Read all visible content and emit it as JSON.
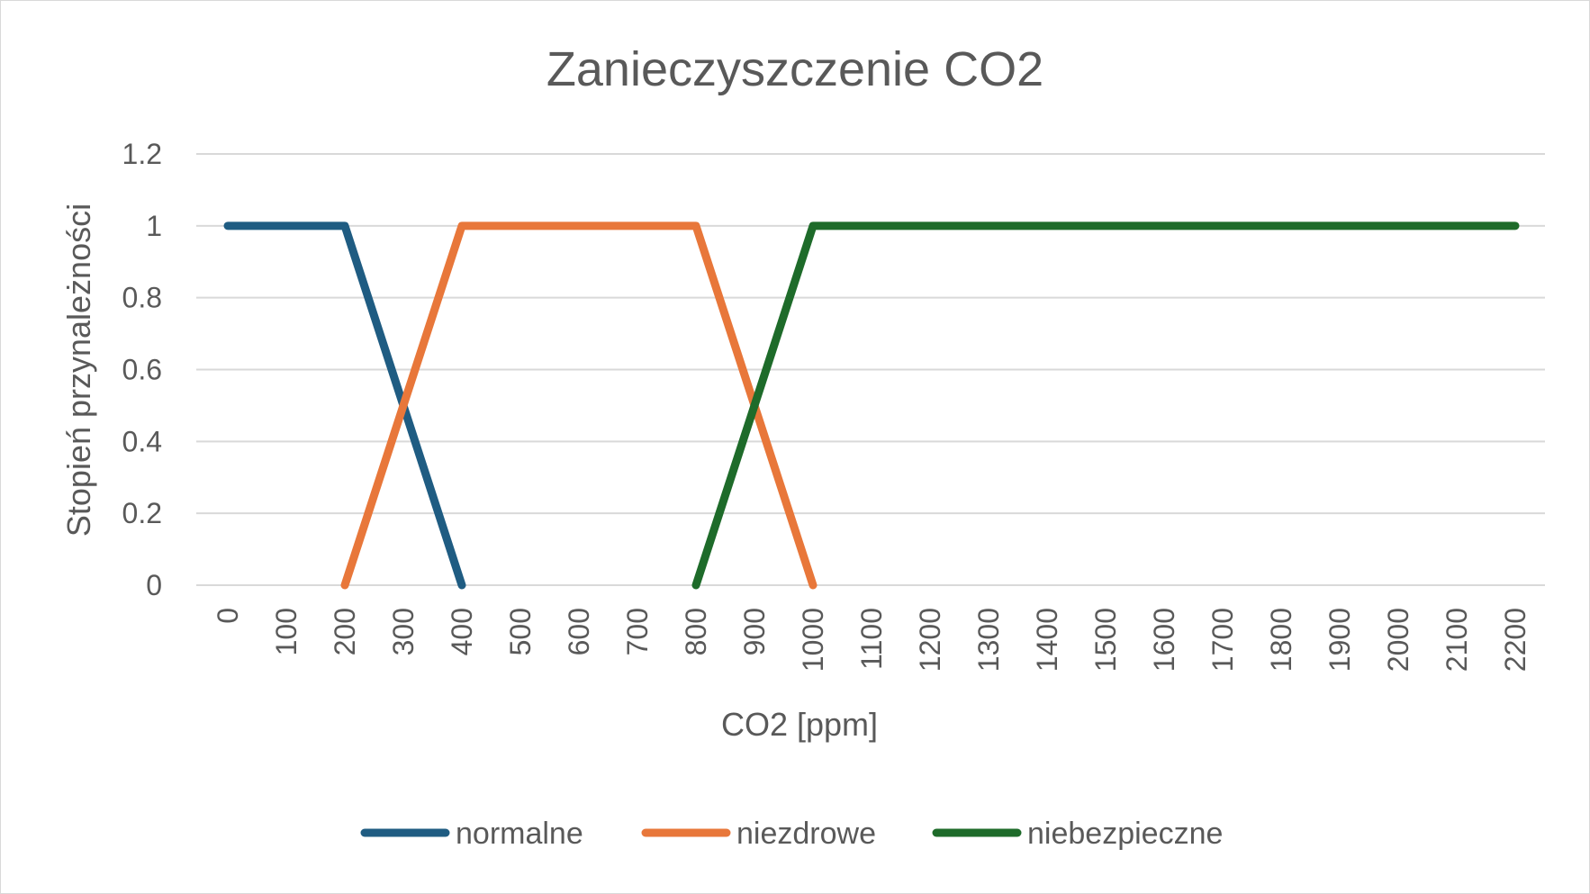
{
  "chart_data": {
    "type": "line",
    "title": "Zanieczyszczenie CO2",
    "xlabel": "CO2 [ppm]",
    "ylabel": "Stopień przynależności",
    "categories": [
      "0",
      "100",
      "200",
      "300",
      "400",
      "500",
      "600",
      "700",
      "800",
      "900",
      "1000",
      "1100",
      "1200",
      "1300",
      "1400",
      "1500",
      "1600",
      "1700",
      "1800",
      "1900",
      "2000",
      "2100",
      "2200"
    ],
    "y_ticks": [
      "0",
      "0.2",
      "0.4",
      "0.6",
      "0.8",
      "1",
      "1.2"
    ],
    "ylim": [
      0,
      1.2
    ],
    "grid": true,
    "legend_position": "bottom",
    "series": [
      {
        "name": "normalne",
        "color": "#1f5c82",
        "points": [
          [
            0,
            1
          ],
          [
            200,
            1
          ],
          [
            400,
            0
          ]
        ]
      },
      {
        "name": "niezdrowe",
        "color": "#e8773a",
        "points": [
          [
            200,
            0
          ],
          [
            400,
            1
          ],
          [
            800,
            1
          ],
          [
            1000,
            0
          ]
        ]
      },
      {
        "name": "niebezpieczne",
        "color": "#1e6b2a",
        "points": [
          [
            800,
            0
          ],
          [
            1000,
            1
          ],
          [
            2200,
            1
          ]
        ]
      }
    ]
  }
}
